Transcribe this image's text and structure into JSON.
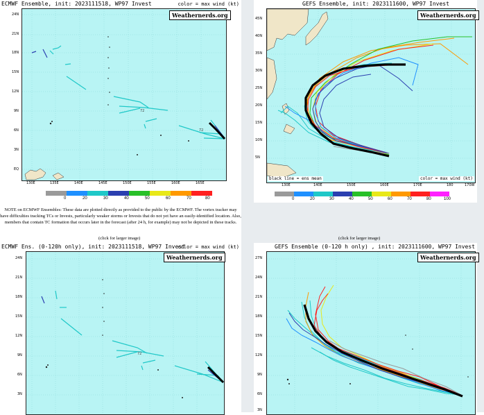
{
  "panels": {
    "tl": {
      "title": "ECMWF Ensemble, init: 2023111518, WP97 Invest",
      "wind_note": "color = max wind (kt)",
      "brand": "Weathernerds.org",
      "ylabels": [
        "24N",
        "21N",
        "18N",
        "15N",
        "12N",
        "9N",
        "6N",
        "3N",
        "EQ"
      ],
      "xlabels": [
        "130E",
        "135E",
        "140E",
        "145E",
        "150E",
        "155E",
        "160E",
        "165E"
      ]
    },
    "tr": {
      "title": "GEFS Ensemble, init: 2023111600, WP97 Invest",
      "brand": "Weathernerds.org",
      "ylabels": [
        "45N",
        "40N",
        "35N",
        "30N",
        "25N",
        "20N",
        "15N",
        "10N",
        "5N"
      ],
      "xlabels": [
        "130E",
        "140E",
        "150E",
        "160E",
        "170E",
        "180",
        "170W"
      ],
      "mean_note": "black line = ens mean",
      "wind_note": "color = max wind (kt)"
    },
    "bl": {
      "title": "ECMWF Ens. (0-120h only), init: 2023111518, WP97 Invest",
      "wind_note": "color = max wind (kt)",
      "brand": "Weathernerds.org",
      "ylabels": [
        "24N",
        "21N",
        "18N",
        "15N",
        "12N",
        "9N",
        "6N",
        "3N"
      ]
    },
    "br": {
      "title": "GEFS Ensemble (0-120 h only) , init: 2023111600, WP97 Invest",
      "brand": "Weathernerds.org",
      "ylabels": [
        "27N",
        "24N",
        "21N",
        "18N",
        "15N",
        "12N",
        "9N",
        "6N",
        "3N"
      ]
    }
  },
  "legend": {
    "values": [
      "0",
      "20",
      "30",
      "40",
      "50",
      "60",
      "70",
      "80",
      "100"
    ],
    "colors": [
      "#9a9a9a",
      "#1e90ff",
      "#1fc8c8",
      "#2b3fb0",
      "#28c028",
      "#e8e818",
      "#ff9900",
      "#ff2020",
      "#ff20ff"
    ]
  },
  "note": "NOTE on ECMWF Ensembles: These data are plotted directly as provided to the public by the ECMWF. The vortex tracker may have difficulties tracking TCs or Invests, particularly weaker storms or Invests that do not yet have an easily-identified location. Also, members that contain TC formation that occurs later in the forecast (after 24 h, for example) may not be depicted in these tracks.",
  "click_left": "(click for larger image)",
  "click_right": "(click for larger image)"
}
